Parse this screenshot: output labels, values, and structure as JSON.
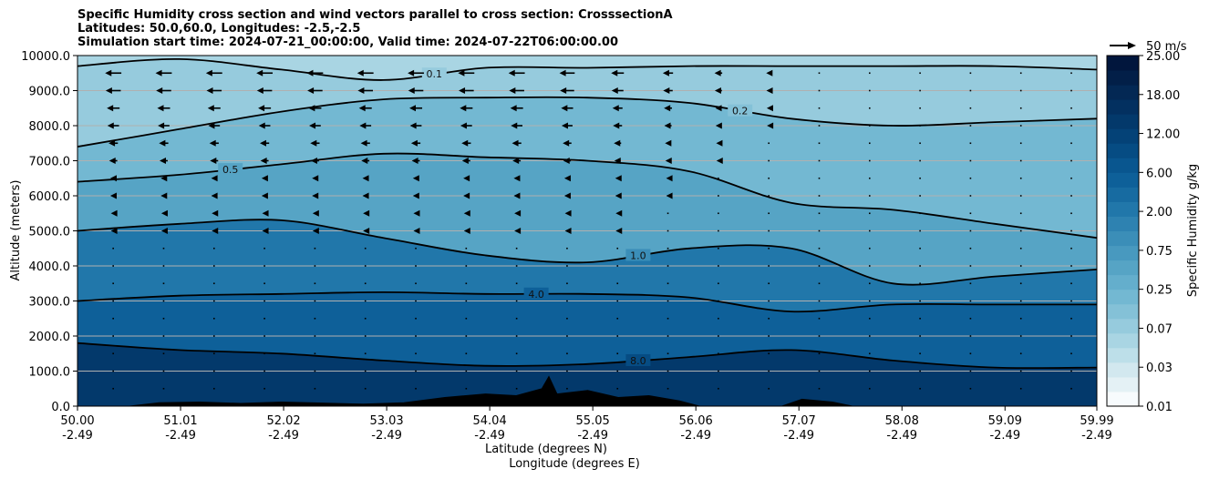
{
  "title": {
    "line1": "Specific Humidity cross section and wind vectors parallel to cross section: CrosssectionA",
    "line2": "Latitudes: 50.0,60.0, Longitudes: -2.5,-2.5",
    "line3": "Simulation start time: 2024-07-21_00:00:00, Valid time: 2024-07-22T06:00:00.00"
  },
  "chart_data": {
    "type": "heatmap",
    "subtype": "filled-contour cross section with contour lines and wind vectors",
    "xlabel_line1": "Latitude (degrees N)",
    "xlabel_line2": "Longitude (degrees E)",
    "ylabel": "Altitude (meters)",
    "xlim": [
      50.0,
      59.99
    ],
    "ylim": [
      0,
      10000
    ],
    "x_ticks": [
      {
        "lat": "50.00",
        "lon": "-2.49"
      },
      {
        "lat": "51.01",
        "lon": "-2.49"
      },
      {
        "lat": "52.02",
        "lon": "-2.49"
      },
      {
        "lat": "53.03",
        "lon": "-2.49"
      },
      {
        "lat": "54.04",
        "lon": "-2.49"
      },
      {
        "lat": "55.05",
        "lon": "-2.49"
      },
      {
        "lat": "56.06",
        "lon": "-2.49"
      },
      {
        "lat": "57.07",
        "lon": "-2.49"
      },
      {
        "lat": "58.08",
        "lon": "-2.49"
      },
      {
        "lat": "59.09",
        "lon": "-2.49"
      },
      {
        "lat": "59.99",
        "lon": "-2.49"
      }
    ],
    "y_ticks": [
      "0.0",
      "1000.0",
      "2000.0",
      "3000.0",
      "4000.0",
      "5000.0",
      "6000.0",
      "7000.0",
      "8000.0",
      "9000.0",
      "10000.0"
    ],
    "grid": "horizontal",
    "colorbar": {
      "label": "Specific Humidity g/kg",
      "tick_labels": [
        "0.01",
        "0.03",
        "0.07",
        "0.25",
        "0.75",
        "2.00",
        "6.00",
        "12.00",
        "18.00",
        "25.00"
      ],
      "levels": [
        0.01,
        0.02,
        0.03,
        0.05,
        0.07,
        0.1,
        0.15,
        0.25,
        0.4,
        0.5,
        0.75,
        1.0,
        1.5,
        2.0,
        3.0,
        4.0,
        6.0,
        8.0,
        10.0,
        12.0,
        15.0,
        18.0,
        20.0,
        25.0
      ],
      "colors": [
        "#f7fbfd",
        "#e4f1f5",
        "#d2e8ef",
        "#bddfe9",
        "#a9d5e3",
        "#96cbdd",
        "#84c1d7",
        "#73b8d2",
        "#64aecc",
        "#56a4c5",
        "#4899bf",
        "#3b8eb8",
        "#2e82b1",
        "#2177aa",
        "#176ba1",
        "#0e6099",
        "#09568f",
        "#064c83",
        "#044277",
        "#03396b",
        "#033060",
        "#032854",
        "#021f48",
        "#01163d"
      ]
    },
    "contour_levels": [
      {
        "label": "0.1",
        "altitudes_m": [
          9700,
          9900,
          9600,
          9300,
          9650,
          9650,
          9700,
          9700,
          9700,
          9700,
          9600
        ]
      },
      {
        "label": "0.2",
        "altitudes_m": [
          7400,
          7900,
          8400,
          8750,
          8800,
          8800,
          8650,
          8200,
          8000,
          8100,
          8200
        ]
      },
      {
        "label": "0.5",
        "altitudes_m": [
          6400,
          6600,
          6900,
          7200,
          7100,
          7000,
          6700,
          5800,
          5600,
          5200,
          4800
        ]
      },
      {
        "label": "1.0",
        "altitudes_m": [
          5000,
          5200,
          5300,
          4800,
          4300,
          4100,
          4500,
          4500,
          3500,
          3700,
          3900
        ]
      },
      {
        "label": "4.0",
        "altitudes_m": [
          3000,
          3150,
          3200,
          3250,
          3200,
          3200,
          3100,
          2700,
          2900,
          2900,
          2900
        ]
      },
      {
        "label": "8.0",
        "altitudes_m": [
          1800,
          1600,
          1500,
          1300,
          1150,
          1200,
          1400,
          1600,
          1300,
          1100,
          1100
        ]
      }
    ],
    "wind_reference": {
      "label": "50 m/s",
      "speed_ms": 50
    },
    "wind_rows_m": [
      9500,
      9000,
      8500,
      8000,
      7500,
      7000,
      6500,
      6000,
      5500,
      5000,
      4500,
      4000,
      3500,
      3000,
      2500,
      2000,
      1500,
      1000,
      500
    ],
    "wind_speed_profile_ms": [
      {
        "altitude_m": 9500,
        "speed_ms": 14
      },
      {
        "altitude_m": 9000,
        "speed_ms": 13
      },
      {
        "altitude_m": 8500,
        "speed_ms": 11
      },
      {
        "altitude_m": 8000,
        "speed_ms": 10
      },
      {
        "altitude_m": 7500,
        "speed_ms": 8
      },
      {
        "altitude_m": 7000,
        "speed_ms": 7
      },
      {
        "altitude_m": 6500,
        "speed_ms": 5
      },
      {
        "altitude_m": 6000,
        "speed_ms": 5
      },
      {
        "altitude_m": 5500,
        "speed_ms": 4
      },
      {
        "altitude_m": 5000,
        "speed_ms": 4
      },
      {
        "altitude_m": 4500,
        "speed_ms": 3
      },
      {
        "altitude_m": 4000,
        "speed_ms": 3
      },
      {
        "altitude_m": 3500,
        "speed_ms": 3
      },
      {
        "altitude_m": 3000,
        "speed_ms": 3
      },
      {
        "altitude_m": 2500,
        "speed_ms": 2
      },
      {
        "altitude_m": 2000,
        "speed_ms": 2
      },
      {
        "altitude_m": 1500,
        "speed_ms": 2
      },
      {
        "altitude_m": 1000,
        "speed_ms": 2
      },
      {
        "altitude_m": 500,
        "speed_ms": 1
      }
    ],
    "terrain_m": [
      {
        "lat": 50.0,
        "h": 0
      },
      {
        "lat": 50.5,
        "h": 0
      },
      {
        "lat": 50.8,
        "h": 100
      },
      {
        "lat": 51.2,
        "h": 120
      },
      {
        "lat": 51.6,
        "h": 80
      },
      {
        "lat": 52.0,
        "h": 120
      },
      {
        "lat": 52.4,
        "h": 90
      },
      {
        "lat": 52.8,
        "h": 60
      },
      {
        "lat": 53.2,
        "h": 100
      },
      {
        "lat": 53.6,
        "h": 250
      },
      {
        "lat": 54.0,
        "h": 350
      },
      {
        "lat": 54.3,
        "h": 300
      },
      {
        "lat": 54.55,
        "h": 500
      },
      {
        "lat": 54.62,
        "h": 850
      },
      {
        "lat": 54.7,
        "h": 350
      },
      {
        "lat": 55.0,
        "h": 450
      },
      {
        "lat": 55.3,
        "h": 250
      },
      {
        "lat": 55.6,
        "h": 300
      },
      {
        "lat": 55.9,
        "h": 150
      },
      {
        "lat": 56.1,
        "h": 0
      },
      {
        "lat": 56.9,
        "h": 0
      },
      {
        "lat": 57.1,
        "h": 200
      },
      {
        "lat": 57.4,
        "h": 120
      },
      {
        "lat": 57.6,
        "h": 0
      },
      {
        "lat": 59.99,
        "h": 0
      }
    ]
  }
}
